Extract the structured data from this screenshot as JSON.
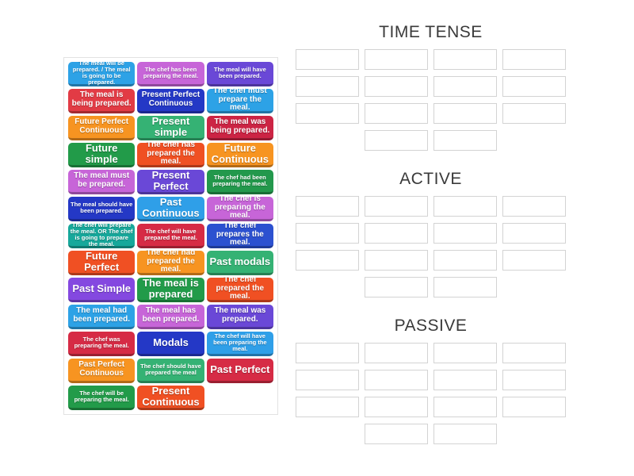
{
  "page": {
    "background": "#ffffff",
    "tray_border_color": "#e2e2e2",
    "slot_border_color": "#d3d3d3",
    "title_color": "#3a3a3a"
  },
  "groups": [
    {
      "title": "TIME TENSE",
      "slot_count": 14
    },
    {
      "title": "ACTIVE",
      "slot_count": 14
    },
    {
      "title": "PASSIVE",
      "slot_count": 14
    }
  ],
  "tiles": [
    {
      "label": "The meal will be prepared. / The meal is going to be prepared.",
      "color": "#2da2e6"
    },
    {
      "label": "The chef has been preparing the meal.",
      "color": "#c765d8"
    },
    {
      "label": "The meal will have been prepared.",
      "color": "#6a48d7"
    },
    {
      "label": "The meal is being prepared.",
      "color": "#e23b45"
    },
    {
      "label": "Present Perfect Continuous",
      "color": "#2438c6"
    },
    {
      "label": "The chef must prepare the meal.",
      "color": "#2da2e6"
    },
    {
      "label": "Future Perfect Continuous",
      "color": "#f79421"
    },
    {
      "label": "Present simple",
      "color": "#35b274"
    },
    {
      "label": "The meal was being prepared.",
      "color": "#cc2444"
    },
    {
      "label": "Future simple",
      "color": "#229b49"
    },
    {
      "label": "The chef has prepared the meal.",
      "color": "#f05023"
    },
    {
      "label": "Future Continuous",
      "color": "#f79421"
    },
    {
      "label": "The meal must be prepared.",
      "color": "#c765d8"
    },
    {
      "label": "Present Perfect",
      "color": "#6a48d7"
    },
    {
      "label": "The chef had been preparing the meal.",
      "color": "#23984c"
    },
    {
      "label": "The meal should have been prepared.",
      "color": "#2438c6"
    },
    {
      "label": "Past Continuous",
      "color": "#2f9fe8"
    },
    {
      "label": "The chef is preparing the meal.",
      "color": "#c765d8"
    },
    {
      "label": "The chef will prepare the meal. OR The chef is going to prepare the meal.",
      "color": "#17a89b"
    },
    {
      "label": "The chef will have prepared the meal.",
      "color": "#d62b45"
    },
    {
      "label": "The chef prepares the meal.",
      "color": "#2c51d0"
    },
    {
      "label": "Future Perfect",
      "color": "#f05023"
    },
    {
      "label": "The chef had prepared the meal.",
      "color": "#f79421"
    },
    {
      "label": "Past modals",
      "color": "#35b274"
    },
    {
      "label": "Past Simple",
      "color": "#8448e0"
    },
    {
      "label": "The meal is prepared",
      "color": "#229b49"
    },
    {
      "label": "The chef prepared the meal.",
      "color": "#f05023"
    },
    {
      "label": "The meal had been prepared.",
      "color": "#2da2e6"
    },
    {
      "label": "The meal has been prepared.",
      "color": "#c765d8"
    },
    {
      "label": "The meal was prepared.",
      "color": "#6a48d7"
    },
    {
      "label": "The chef was preparing the meal.",
      "color": "#d62b45"
    },
    {
      "label": "Modals",
      "color": "#2438c6"
    },
    {
      "label": "The chef will have been preparing the meal.",
      "color": "#2f9fe8"
    },
    {
      "label": "Past Perfect Continuous",
      "color": "#f79421"
    },
    {
      "label": "The chef should have prepared the meal",
      "color": "#35b274"
    },
    {
      "label": "Past Perfect",
      "color": "#d62b45"
    },
    {
      "label": "The chef will be preparing the meal.",
      "color": "#229b49"
    },
    {
      "label": "Present Continuous",
      "color": "#f05023"
    }
  ]
}
